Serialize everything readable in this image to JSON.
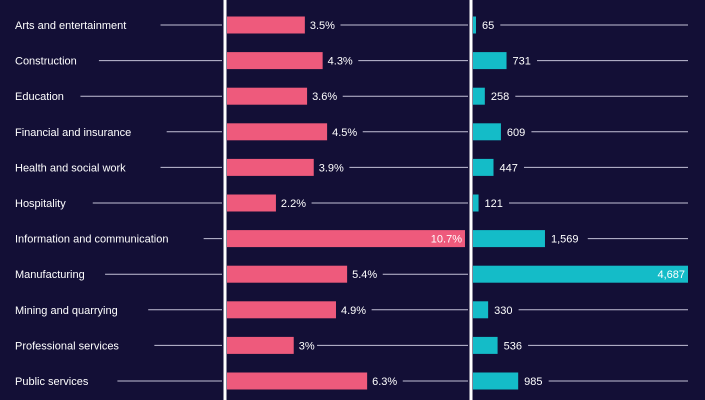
{
  "colors": {
    "background": "#130f36",
    "left_bar": "#ee5a7c",
    "right_bar": "#14bcc8",
    "text": "#ffffff",
    "guide_line": "#c3c0d6",
    "divider": "#ffffff"
  },
  "chart_data": [
    {
      "type": "bar",
      "orientation": "horizontal",
      "categories": [
        "Arts and entertainment",
        "Construction",
        "Education",
        "Financial and insurance",
        "Health and social work",
        "Hospitality",
        "Information and communication",
        "Manufacturing",
        "Mining and quarrying",
        "Professional services",
        "Public services"
      ],
      "values": [
        3.5,
        4.3,
        3.6,
        4.5,
        3.9,
        2.2,
        10.7,
        5.4,
        4.9,
        3,
        6.3
      ],
      "labels": [
        "3.5%",
        "4.3%",
        "3.6%",
        "4.5%",
        "3.9%",
        "2.2%",
        "10.7%",
        "5.4%",
        "4.9%",
        "3%",
        "6.3%"
      ],
      "xlim": [
        0,
        10.7
      ],
      "title": "",
      "xlabel": "",
      "ylabel": "",
      "grid": false
    },
    {
      "type": "bar",
      "orientation": "horizontal",
      "categories": [
        "Arts and entertainment",
        "Construction",
        "Education",
        "Financial and insurance",
        "Health and social work",
        "Hospitality",
        "Information and communication",
        "Manufacturing",
        "Mining and quarrying",
        "Professional services",
        "Public services"
      ],
      "values": [
        65,
        731,
        258,
        609,
        447,
        121,
        1569,
        4687,
        330,
        536,
        985
      ],
      "labels": [
        "65",
        "731",
        "258",
        "609",
        "447",
        "121",
        "1,569",
        "4,687",
        "330",
        "536",
        "985"
      ],
      "xlim": [
        0,
        4687
      ],
      "title": "",
      "xlabel": "",
      "ylabel": "",
      "grid": false
    }
  ]
}
